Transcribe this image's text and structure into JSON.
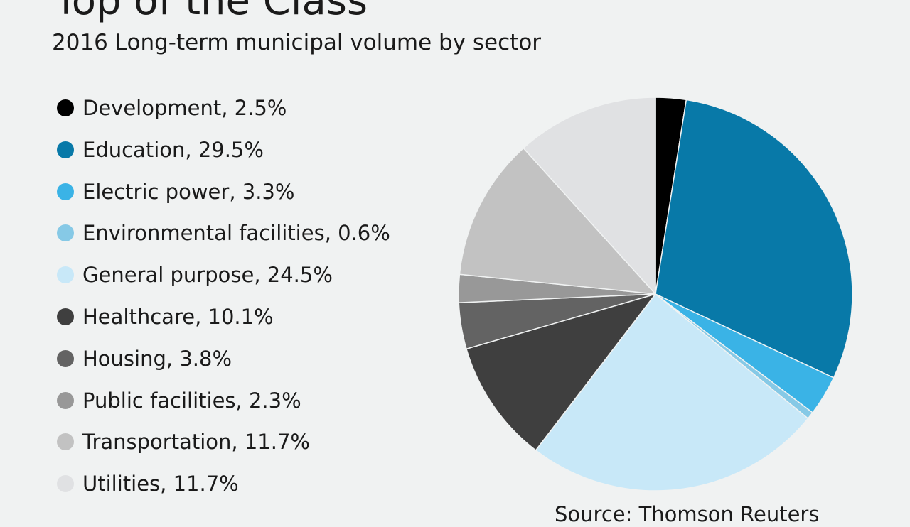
{
  "chart_data": {
    "type": "pie",
    "title": "Top of the Class",
    "subtitle": "2016 Long-term municipal volume by sector",
    "legend_position": "left",
    "slices": [
      {
        "label": "Development",
        "value": 2.5,
        "legend_text": "Development, 2.5%",
        "color": "#000000"
      },
      {
        "label": "Education",
        "value": 29.5,
        "legend_text": "Education, 29.5%",
        "color": "#0879a8"
      },
      {
        "label": "Electric power",
        "value": 3.3,
        "legend_text": "Electric power, 3.3%",
        "color": "#3ab3e6"
      },
      {
        "label": "Environmental facilities",
        "value": 0.6,
        "legend_text": "Environmental facilities, 0.6%",
        "color": "#86c9e6"
      },
      {
        "label": "General purpose",
        "value": 24.5,
        "legend_text": "General purpose, 24.5%",
        "color": "#c8e8f8"
      },
      {
        "label": "Healthcare",
        "value": 10.1,
        "legend_text": "Healthcare, 10.1%",
        "color": "#3f3f3f"
      },
      {
        "label": "Housing",
        "value": 3.8,
        "legend_text": "Housing, 3.8%",
        "color": "#636363"
      },
      {
        "label": "Public facilities",
        "value": 2.3,
        "legend_text": "Public facilities, 2.3%",
        "color": "#989898"
      },
      {
        "label": "Transportation",
        "value": 11.7,
        "legend_text": "Transportation, 11.7%",
        "color": "#c2c2c2"
      },
      {
        "label": "Utilities",
        "value": 11.7,
        "legend_text": "Utilities, 11.7%",
        "color": "#e0e1e3"
      }
    ],
    "source": "Source: Thomson Reuters"
  }
}
